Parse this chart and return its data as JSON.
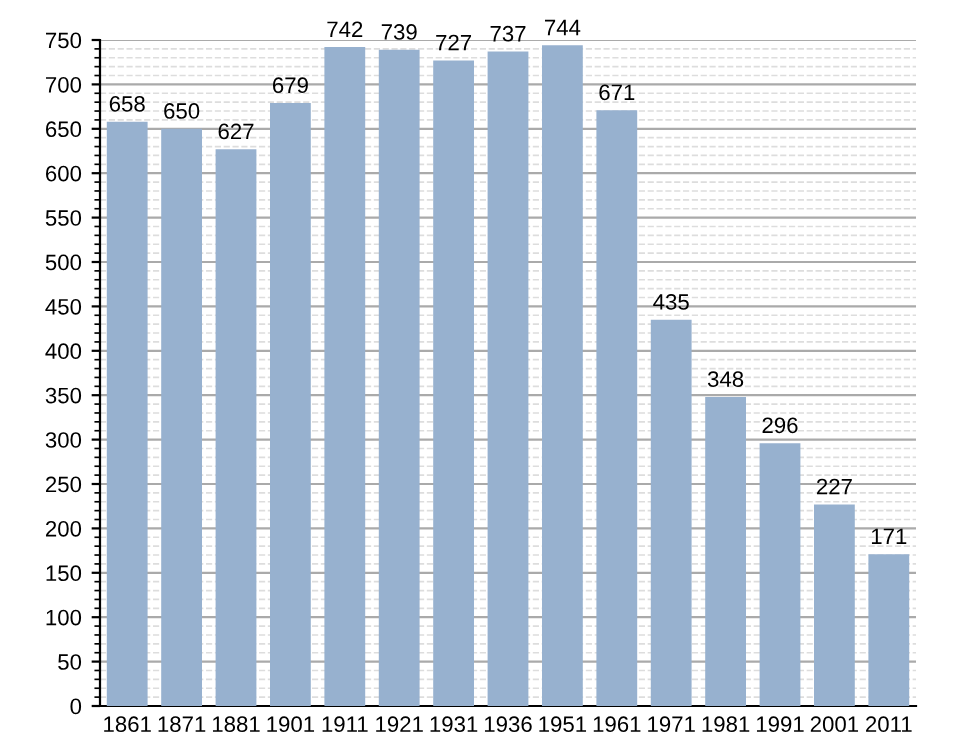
{
  "chart_data": {
    "type": "bar",
    "categories": [
      "1861",
      "1871",
      "1881",
      "1901",
      "1911",
      "1921",
      "1931",
      "1936",
      "1951",
      "1961",
      "1971",
      "1981",
      "1991",
      "2001",
      "2011"
    ],
    "values": [
      658,
      650,
      627,
      679,
      742,
      739,
      727,
      737,
      744,
      671,
      435,
      348,
      296,
      227,
      171
    ],
    "color": "#97b1cf",
    "ylim": [
      0,
      750
    ],
    "yticks": [
      0,
      50,
      100,
      150,
      200,
      250,
      300,
      350,
      400,
      450,
      500,
      550,
      600,
      650,
      700,
      750
    ],
    "grid": "y",
    "data_labels": true
  }
}
